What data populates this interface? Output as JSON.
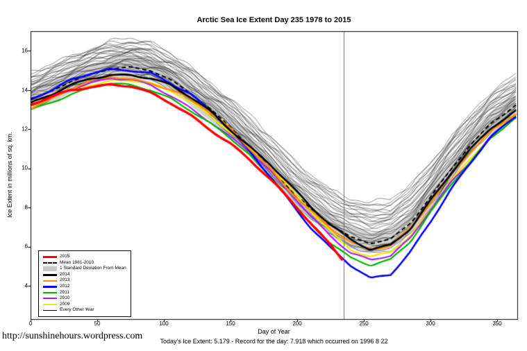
{
  "chart_data": {
    "type": "line",
    "title": "Arctic Sea Ice Extent Day 235 1978 to 2015",
    "xlabel": "Day of Year",
    "ylabel": "Ice Extent in millions of sq. km.",
    "xlim": [
      0,
      365
    ],
    "ylim": [
      2.3,
      17.0
    ],
    "x_ticks": [
      0,
      50,
      100,
      150,
      200,
      250,
      300,
      350
    ],
    "y_ticks": [
      16,
      14,
      12,
      10,
      8,
      6,
      4
    ],
    "grid": false,
    "legend_position": "bottom-left-inside",
    "vline_day": 235,
    "x_control": [
      0,
      15,
      30,
      45,
      60,
      75,
      90,
      105,
      120,
      135,
      150,
      165,
      180,
      195,
      210,
      225,
      240,
      255,
      270,
      285,
      300,
      315,
      330,
      345,
      365
    ],
    "mean_series": {
      "name": "Mean 1981-2010",
      "color": "#000000",
      "dash": true,
      "width": 2,
      "values": [
        13.5,
        13.9,
        14.4,
        14.8,
        15.1,
        15.2,
        15.0,
        14.5,
        13.8,
        13.0,
        12.1,
        11.1,
        10.0,
        8.9,
        7.9,
        7.1,
        6.5,
        6.2,
        6.4,
        7.2,
        8.5,
        9.9,
        11.2,
        12.3,
        13.3
      ]
    },
    "std_band": {
      "name": "1 Standard Deviation From Mean",
      "color": "#d3d3d3",
      "halfwidth": 0.55
    },
    "series": [
      {
        "name": "2009",
        "color": "#ffe100",
        "width": 2.2,
        "values": [
          13.1,
          13.6,
          14.0,
          14.3,
          14.5,
          14.5,
          14.3,
          13.9,
          13.4,
          12.7,
          11.9,
          11.0,
          10.0,
          8.9,
          7.8,
          6.8,
          5.9,
          5.5,
          5.7,
          6.5,
          7.8,
          9.4,
          10.5,
          11.7,
          12.8
        ]
      },
      {
        "name": "2010",
        "color": "#a020f0",
        "width": 2.2,
        "values": [
          13.2,
          13.6,
          14.1,
          14.4,
          14.6,
          14.5,
          14.2,
          13.7,
          13.1,
          12.4,
          11.6,
          10.8,
          9.8,
          8.7,
          7.6,
          6.6,
          5.7,
          5.3,
          5.5,
          6.4,
          7.9,
          9.3,
          10.4,
          11.6,
          12.7
        ]
      },
      {
        "name": "2011",
        "color": "#00b400",
        "width": 2.2,
        "values": [
          13.0,
          13.4,
          13.8,
          14.1,
          14.3,
          14.2,
          14.0,
          13.6,
          13.0,
          12.3,
          11.5,
          10.6,
          9.5,
          8.4,
          7.2,
          6.2,
          5.4,
          5.0,
          5.3,
          6.3,
          7.8,
          9.2,
          10.3,
          11.5,
          12.6
        ]
      },
      {
        "name": "2012",
        "color": "#0000ff",
        "width": 2.6,
        "values": [
          13.6,
          14.0,
          14.5,
          14.8,
          15.0,
          15.0,
          14.9,
          14.4,
          13.8,
          12.9,
          11.9,
          10.8,
          9.6,
          8.3,
          7.0,
          5.9,
          5.0,
          4.35,
          4.6,
          5.8,
          7.3,
          8.9,
          10.2,
          11.6,
          12.7
        ]
      },
      {
        "name": "2013",
        "color": "#ff8c00",
        "width": 2.2,
        "values": [
          13.1,
          13.5,
          14.0,
          14.4,
          14.7,
          14.6,
          14.4,
          14.0,
          13.5,
          12.8,
          12.0,
          11.0,
          10.0,
          8.8,
          7.8,
          6.9,
          6.2,
          5.9,
          6.1,
          7.0,
          8.2,
          9.6,
          10.8,
          11.9,
          12.9
        ]
      },
      {
        "name": "2014",
        "color": "#000000",
        "width": 2.6,
        "values": [
          13.3,
          13.7,
          14.2,
          14.6,
          14.8,
          14.8,
          14.6,
          14.2,
          13.6,
          12.9,
          12.0,
          11.1,
          10.2,
          9.1,
          8.0,
          7.1,
          6.4,
          5.9,
          6.1,
          6.9,
          8.3,
          9.7,
          11.0,
          12.1,
          13.0
        ]
      },
      {
        "name": "2015",
        "color": "#ff0000",
        "width": 3.4,
        "end_day": 235,
        "values": [
          13.2,
          13.6,
          14.0,
          14.2,
          14.3,
          14.2,
          13.8,
          13.3,
          12.7,
          12.0,
          11.3,
          10.4,
          9.4,
          8.3,
          7.2,
          6.1,
          4.9,
          null,
          null,
          null,
          null,
          null,
          null,
          null,
          null
        ]
      }
    ],
    "ensemble": {
      "name": "Every Other Year",
      "count": 28,
      "color": "#000000",
      "width": 0.6
    }
  },
  "legend": {
    "items": [
      {
        "label": "2015",
        "color": "#ff0000",
        "style": "line",
        "width": 3
      },
      {
        "label": "Mean 1981-2010",
        "color": "#000000",
        "style": "dashed",
        "width": 2
      },
      {
        "label": "1 Standard Deviation From Mean",
        "color": "#c8c8c8",
        "style": "band",
        "width": 7
      },
      {
        "label": "2014",
        "color": "#000000",
        "style": "line",
        "width": 3
      },
      {
        "label": "2013",
        "color": "#ff8c00",
        "style": "line",
        "width": 2
      },
      {
        "label": "2012",
        "color": "#0000ff",
        "style": "line",
        "width": 3
      },
      {
        "label": "2011",
        "color": "#00b400",
        "style": "line",
        "width": 2
      },
      {
        "label": "2010",
        "color": "#a020f0",
        "style": "line",
        "width": 2
      },
      {
        "label": "2009",
        "color": "#ffe100",
        "style": "line",
        "width": 2
      },
      {
        "label": "Every Other Year",
        "color": "#000000",
        "style": "line",
        "width": 1
      }
    ]
  },
  "footer": {
    "status_line": "Today's Ice Extent: 5.179  - Record for the day: 7.918 which occurred on 1996 8 22",
    "url": "http://sunshinehours.wordpress.com"
  }
}
